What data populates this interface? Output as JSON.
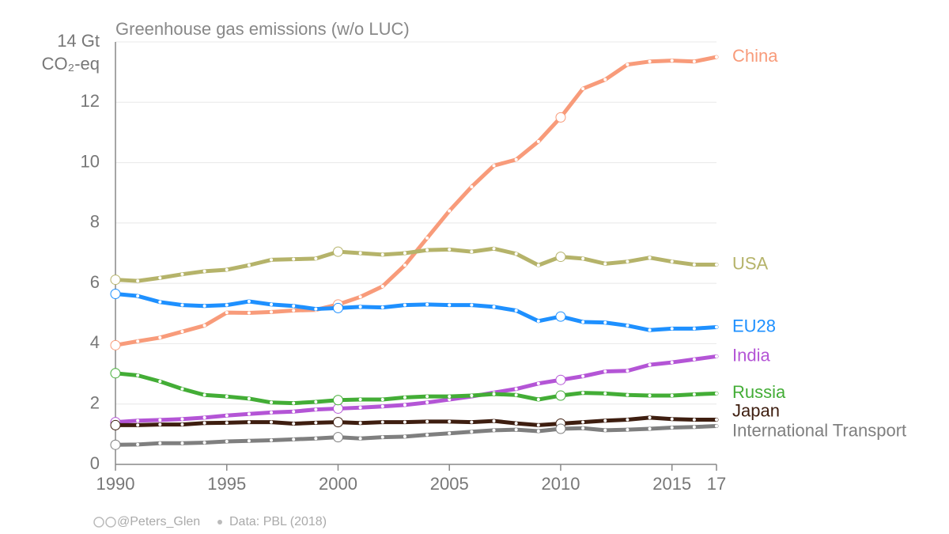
{
  "chart_data": {
    "type": "line",
    "title": "Greenhouse gas emissions (w/o LUC)",
    "y_label": "CO₂-eq",
    "credit": "@Peters_Glen",
    "source": "Data: PBL (2018)",
    "x": [
      1990,
      1991,
      1992,
      1993,
      1994,
      1995,
      1996,
      1997,
      1998,
      1999,
      2000,
      2001,
      2002,
      2003,
      2004,
      2005,
      2006,
      2007,
      2008,
      2009,
      2010,
      2011,
      2012,
      2013,
      2014,
      2015,
      2016,
      2017
    ],
    "xlim": [
      1990,
      2017
    ],
    "xticks": [
      1990,
      1995,
      2000,
      2005,
      2010,
      2015,
      {
        "value": 2017,
        "label": "17"
      }
    ],
    "ylim": [
      0,
      14
    ],
    "yticks": [
      0,
      2,
      4,
      6,
      8,
      10,
      12,
      {
        "value": 14,
        "label": "14 Gt"
      }
    ],
    "grid": true,
    "series": [
      {
        "name": "China",
        "color": "#f89b7a",
        "values": [
          3.95,
          4.08,
          4.2,
          4.4,
          4.6,
          5.03,
          5.02,
          5.05,
          5.1,
          5.12,
          5.3,
          5.55,
          5.9,
          6.6,
          7.5,
          8.4,
          9.2,
          9.9,
          10.1,
          10.7,
          11.5,
          12.45,
          12.75,
          13.25,
          13.35,
          13.38,
          13.35,
          13.5
        ]
      },
      {
        "name": "USA",
        "color": "#b5b36a",
        "values": [
          6.12,
          6.08,
          6.18,
          6.3,
          6.4,
          6.45,
          6.6,
          6.78,
          6.8,
          6.82,
          7.05,
          7.0,
          6.95,
          7.0,
          7.1,
          7.12,
          7.05,
          7.15,
          6.98,
          6.6,
          6.88,
          6.82,
          6.65,
          6.72,
          6.85,
          6.72,
          6.62,
          6.62
        ]
      },
      {
        "name": "EU28",
        "color": "#1e90ff",
        "values": [
          5.65,
          5.58,
          5.38,
          5.28,
          5.25,
          5.28,
          5.4,
          5.3,
          5.25,
          5.15,
          5.18,
          5.22,
          5.2,
          5.28,
          5.3,
          5.28,
          5.28,
          5.22,
          5.1,
          4.75,
          4.9,
          4.72,
          4.7,
          4.6,
          4.45,
          4.5,
          4.5,
          4.55
        ]
      },
      {
        "name": "India",
        "color": "#b455d6",
        "values": [
          1.4,
          1.45,
          1.47,
          1.5,
          1.55,
          1.62,
          1.67,
          1.72,
          1.75,
          1.82,
          1.85,
          1.88,
          1.92,
          1.97,
          2.05,
          2.15,
          2.25,
          2.38,
          2.5,
          2.68,
          2.8,
          2.92,
          3.08,
          3.1,
          3.3,
          3.38,
          3.48,
          3.58
        ]
      },
      {
        "name": "Russia",
        "color": "#43ad36",
        "values": [
          3.02,
          2.95,
          2.75,
          2.5,
          2.3,
          2.25,
          2.18,
          2.05,
          2.03,
          2.07,
          2.13,
          2.15,
          2.15,
          2.22,
          2.25,
          2.25,
          2.28,
          2.33,
          2.3,
          2.15,
          2.28,
          2.37,
          2.35,
          2.3,
          2.28,
          2.28,
          2.32,
          2.35
        ]
      },
      {
        "name": "Japan",
        "color": "#3e1e10",
        "values": [
          1.3,
          1.3,
          1.32,
          1.32,
          1.37,
          1.38,
          1.4,
          1.4,
          1.35,
          1.38,
          1.4,
          1.37,
          1.4,
          1.4,
          1.42,
          1.42,
          1.4,
          1.44,
          1.36,
          1.3,
          1.35,
          1.4,
          1.45,
          1.48,
          1.55,
          1.5,
          1.48,
          1.48
        ]
      },
      {
        "name": "International Transport",
        "color": "#7f7f7f",
        "values": [
          0.65,
          0.66,
          0.7,
          0.7,
          0.72,
          0.76,
          0.78,
          0.8,
          0.83,
          0.86,
          0.9,
          0.86,
          0.9,
          0.92,
          0.98,
          1.03,
          1.08,
          1.13,
          1.15,
          1.1,
          1.18,
          1.2,
          1.13,
          1.15,
          1.18,
          1.22,
          1.24,
          1.27
        ]
      }
    ]
  }
}
